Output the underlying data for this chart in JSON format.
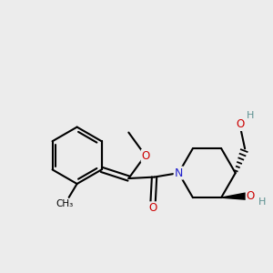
{
  "background_color": "#ececec",
  "bond_color": "#000000",
  "nitrogen_color": "#2020cc",
  "oxygen_color": "#cc0000",
  "hydrogen_color": "#5b9090",
  "line_width": 1.5,
  "fig_width": 3.0,
  "fig_height": 3.0,
  "dpi": 100,
  "xlim": [
    0,
    10
  ],
  "ylim": [
    0,
    10
  ]
}
